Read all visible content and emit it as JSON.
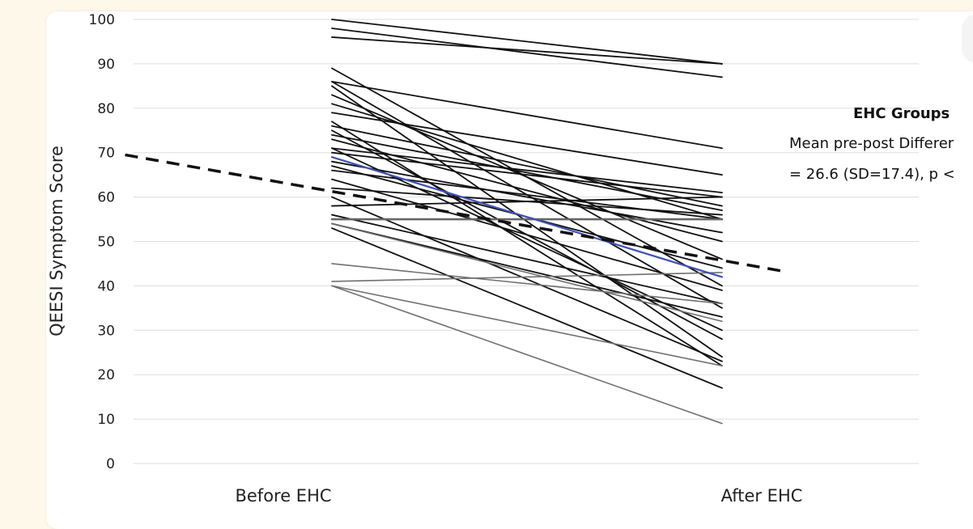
{
  "chart_data": {
    "type": "line",
    "categories": [
      "Before EHC",
      "After EHC"
    ],
    "ylabel": "QEESI Symptom Score",
    "ylim": [
      0,
      100
    ],
    "yticks": [
      0,
      10,
      20,
      30,
      40,
      50,
      60,
      70,
      80,
      90,
      100
    ],
    "grid": true,
    "legend_placement": "right",
    "annotation": {
      "title": "EHC Groups",
      "line1": "Mean pre-post Differer",
      "line2": "= 26.6 (SD=17.4), p <"
    },
    "series": [
      {
        "values": [
          100,
          90
        ]
      },
      {
        "values": [
          98,
          87
        ]
      },
      {
        "values": [
          96,
          90
        ]
      },
      {
        "values": [
          89,
          40
        ]
      },
      {
        "values": [
          86,
          71
        ]
      },
      {
        "values": [
          86,
          35
        ]
      },
      {
        "values": [
          85,
          24
        ]
      },
      {
        "values": [
          83,
          46
        ]
      },
      {
        "values": [
          81,
          55
        ]
      },
      {
        "values": [
          79,
          65
        ]
      },
      {
        "values": [
          77,
          22
        ]
      },
      {
        "values": [
          76,
          58
        ]
      },
      {
        "values": [
          75,
          28
        ]
      },
      {
        "values": [
          74,
          57
        ]
      },
      {
        "values": [
          73,
          50
        ]
      },
      {
        "values": [
          71,
          61
        ]
      },
      {
        "values": [
          71,
          30
        ]
      },
      {
        "values": [
          70,
          60
        ]
      },
      {
        "values": [
          68,
          52
        ]
      },
      {
        "values": [
          67,
          44
        ]
      },
      {
        "values": [
          66,
          55
        ]
      },
      {
        "values": [
          64,
          39
        ]
      },
      {
        "values": [
          62,
          56
        ]
      },
      {
        "values": [
          60,
          23
        ]
      },
      {
        "values": [
          58,
          60
        ]
      },
      {
        "values": [
          56,
          36
        ]
      },
      {
        "values": [
          54,
          33
        ]
      },
      {
        "values": [
          53,
          17
        ]
      },
      {
        "values": [
          55,
          55
        ],
        "color": "#666666",
        "width": 2.6
      },
      {
        "values": [
          45,
          36
        ],
        "color": "#707070",
        "width": 1.6
      },
      {
        "values": [
          41,
          43
        ],
        "color": "#707070",
        "width": 1.6
      },
      {
        "values": [
          40,
          22
        ],
        "color": "#707070",
        "width": 1.6
      },
      {
        "values": [
          40,
          9
        ],
        "color": "#707070",
        "width": 1.6
      },
      {
        "values": [
          54,
          32
        ],
        "color": "#707070",
        "width": 1.6
      },
      {
        "values": [
          69,
          42
        ],
        "color": "#3f51b5",
        "width": 2.2
      }
    ],
    "trend": {
      "from": [
        -0.53,
        69.5
      ],
      "to": [
        1.15,
        43.4
      ],
      "style": "dashed",
      "color": "#111111"
    }
  }
}
